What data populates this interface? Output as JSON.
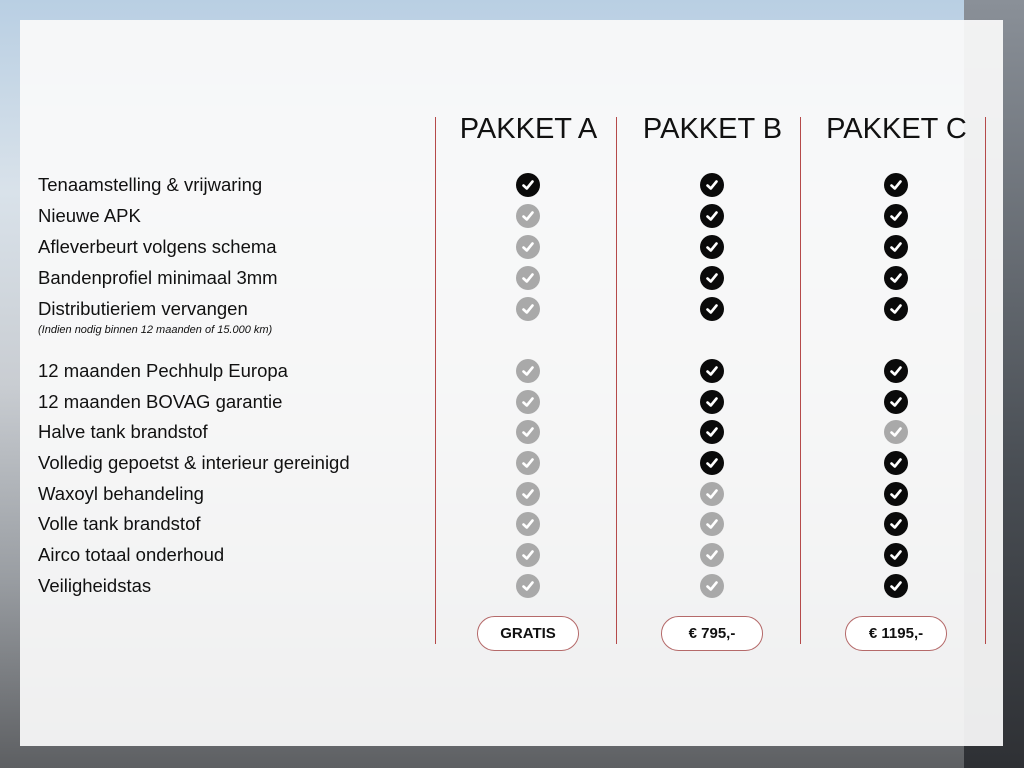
{
  "packages": [
    {
      "name": "PAKKET A",
      "price": "GRATIS"
    },
    {
      "name": "PAKKET B",
      "price": "€ 795,-"
    },
    {
      "name": "PAKKET C",
      "price": "€ 1195,-"
    }
  ],
  "note": "(Indien nodig binnen 12 maanden of 15.000 km)",
  "features": [
    {
      "label": "Tenaamstelling & vrijwaring",
      "included": [
        true,
        true,
        true
      ]
    },
    {
      "label": "Nieuwe APK",
      "included": [
        false,
        true,
        true
      ]
    },
    {
      "label": "Afleverbeurt volgens schema",
      "included": [
        false,
        true,
        true
      ]
    },
    {
      "label": "Bandenprofiel minimaal 3mm",
      "included": [
        false,
        true,
        true
      ]
    },
    {
      "label": "Distributieriem vervangen",
      "included": [
        false,
        true,
        true
      ]
    },
    {
      "label": "12 maanden Pechhulp Europa",
      "included": [
        false,
        true,
        true
      ]
    },
    {
      "label": "12 maanden BOVAG garantie",
      "included": [
        false,
        true,
        true
      ]
    },
    {
      "label": "Halve tank brandstof",
      "included": [
        false,
        true,
        false
      ]
    },
    {
      "label": "Volledig gepoetst & interieur gereinigd",
      "included": [
        false,
        true,
        true
      ]
    },
    {
      "label": "Waxoyl behandeling",
      "included": [
        false,
        false,
        true
      ]
    },
    {
      "label": "Volle tank brandstof",
      "included": [
        false,
        false,
        true
      ]
    },
    {
      "label": "Airco totaal onderhoud",
      "included": [
        false,
        false,
        true
      ]
    },
    {
      "label": "Veiligheidstas",
      "included": [
        false,
        false,
        true
      ]
    }
  ],
  "colors": {
    "accent": "#b54a4a",
    "included": "#0a0a0a",
    "excluded": "#a9a9a9"
  }
}
